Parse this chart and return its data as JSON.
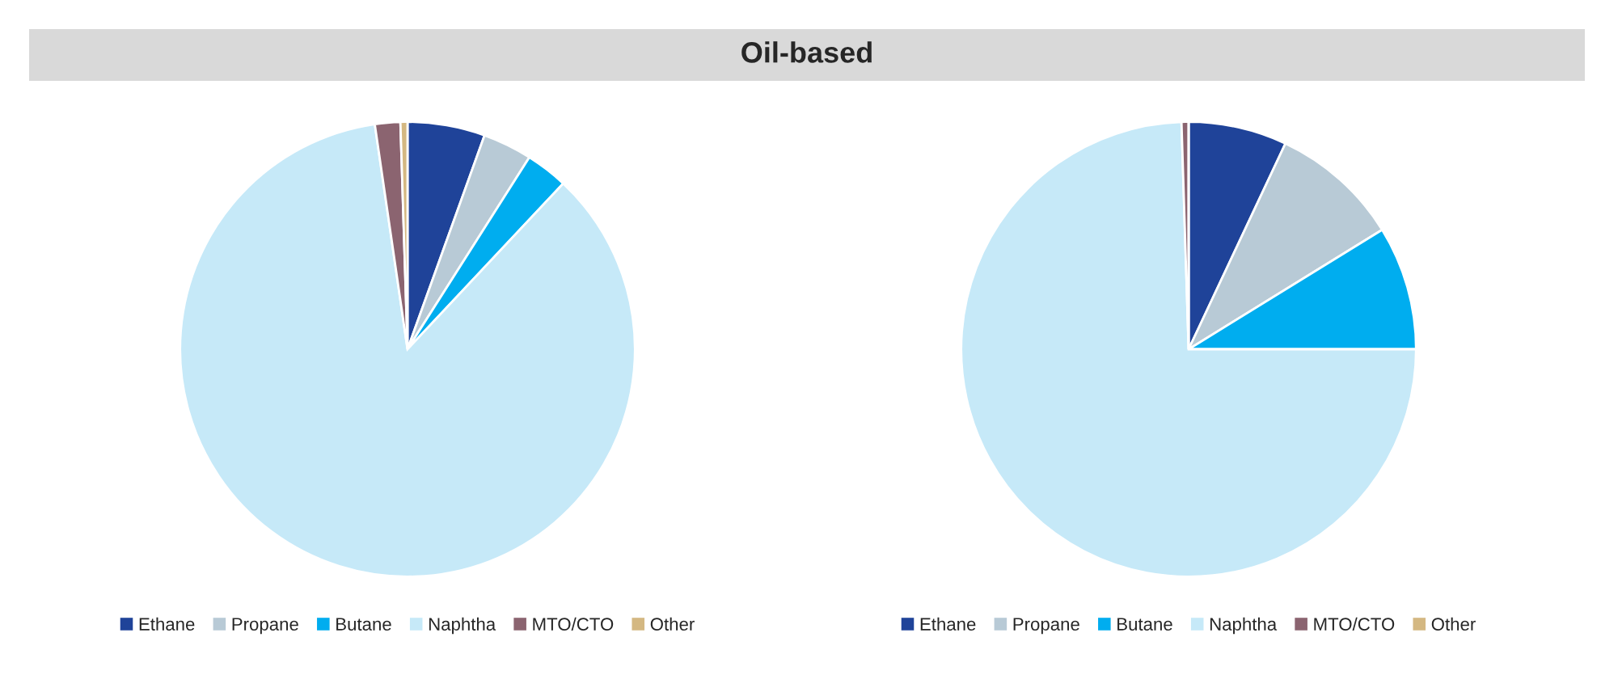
{
  "chart_data": [
    {
      "type": "pie",
      "title": "Oil-based",
      "categories": [
        "Ethane",
        "Propane",
        "Butane",
        "Naphtha",
        "MTO/CTO",
        "Other"
      ],
      "values": [
        5.5,
        3.5,
        3.0,
        85.7,
        1.8,
        0.5
      ],
      "colors": [
        "#1f4399",
        "#b8cad6",
        "#00adef",
        "#c6e9f8",
        "#8b6470",
        "#d4b882"
      ],
      "legend": "bottom"
    },
    {
      "type": "pie",
      "categories": [
        "Ethane",
        "Propane",
        "Butane",
        "Naphtha",
        "MTO/CTO",
        "Other"
      ],
      "values": [
        7.0,
        9.2,
        8.8,
        74.5,
        0.5,
        0
      ],
      "colors": [
        "#1f4399",
        "#b8cad6",
        "#00adef",
        "#c6e9f8",
        "#8b6470",
        "#d4b882"
      ],
      "legend": "bottom"
    }
  ]
}
